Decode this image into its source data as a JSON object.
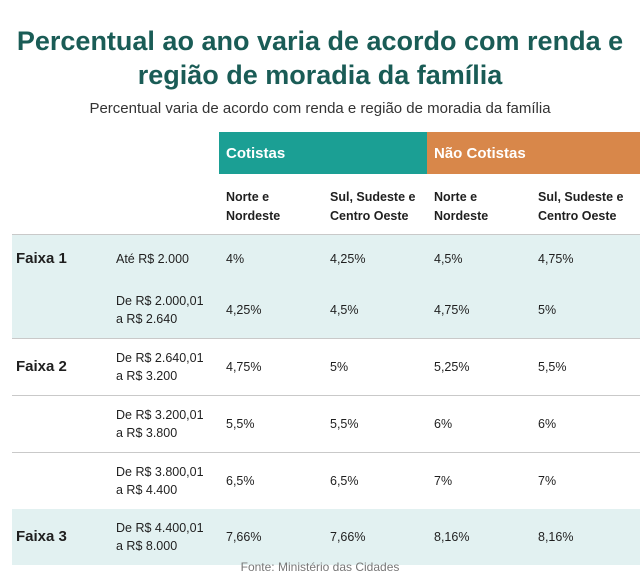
{
  "title": "Percentual ao ano varia de acordo com renda e região de moradia da família",
  "subtitle": "Percentual varia de acordo com renda e região de moradia da família",
  "table": {
    "groups": [
      "Cotistas",
      "Não Cotistas"
    ],
    "columns": [
      [
        "Norte e",
        "Nordeste"
      ],
      [
        "Sul, Sudeste e",
        "Centro Oeste"
      ],
      [
        "Norte e",
        "Nordeste"
      ],
      [
        "Sul, Sudeste e",
        "Centro Oeste"
      ]
    ],
    "rows": [
      {
        "faixa": "Faixa 1",
        "renda": [
          "Até R$ 2.000"
        ],
        "values": [
          "4%",
          "4,25%",
          "4,5%",
          "4,75%"
        ]
      },
      {
        "faixa": "",
        "renda": [
          "De R$ 2.000,01",
          "a R$ 2.640"
        ],
        "values": [
          "4,25%",
          "4,5%",
          "4,75%",
          "5%"
        ]
      },
      {
        "faixa": "Faixa 2",
        "renda": [
          "De R$ 2.640,01",
          "a R$ 3.200"
        ],
        "values": [
          "4,75%",
          "5%",
          "5,25%",
          "5,5%"
        ]
      },
      {
        "faixa": "",
        "renda": [
          "De R$ 3.200,01",
          "a R$ 3.800"
        ],
        "values": [
          "5,5%",
          "5,5%",
          "6%",
          "6%"
        ]
      },
      {
        "faixa": "",
        "renda": [
          "De R$ 3.800,01",
          "a R$ 4.400"
        ],
        "values": [
          "6,5%",
          "6,5%",
          "7%",
          "7%"
        ]
      },
      {
        "faixa": "Faixa 3",
        "renda": [
          "De R$ 4.400,01",
          "a R$ 8.000"
        ],
        "values": [
          "7,66%",
          "7,66%",
          "8,16%",
          "8,16%"
        ]
      }
    ]
  },
  "source": "Fonte: Ministério das Cidades",
  "colors": {
    "title": "#1a5c56",
    "cotistas": "#1b9f94",
    "nao_cotistas": "#d8874a",
    "shaded_row": "#e2f1f1"
  }
}
